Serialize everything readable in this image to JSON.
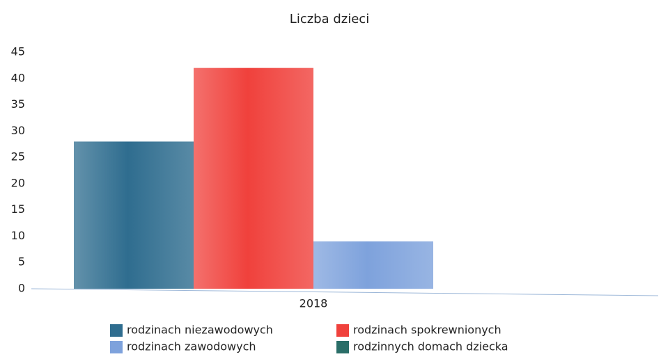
{
  "chart_data": {
    "type": "bar",
    "title": "Liczba dzieci",
    "categories": [
      "2018"
    ],
    "series": [
      {
        "name": "rodzinach niezawodowych",
        "color": "#2f6d8f",
        "values": [
          28
        ]
      },
      {
        "name": "rodzinach spokrewnionych",
        "color": "#f0413c",
        "values": [
          42
        ]
      },
      {
        "name": "rodzinach zawodowych",
        "color": "#7ea2dc",
        "values": [
          9
        ]
      },
      {
        "name": "rodzinnych domach dziecka",
        "color": "#2a6e68",
        "values": [
          0
        ]
      }
    ],
    "ylim": [
      0,
      45
    ],
    "yticks": [
      0,
      5,
      10,
      15,
      20,
      25,
      30,
      35,
      40,
      45
    ],
    "grid": false
  }
}
